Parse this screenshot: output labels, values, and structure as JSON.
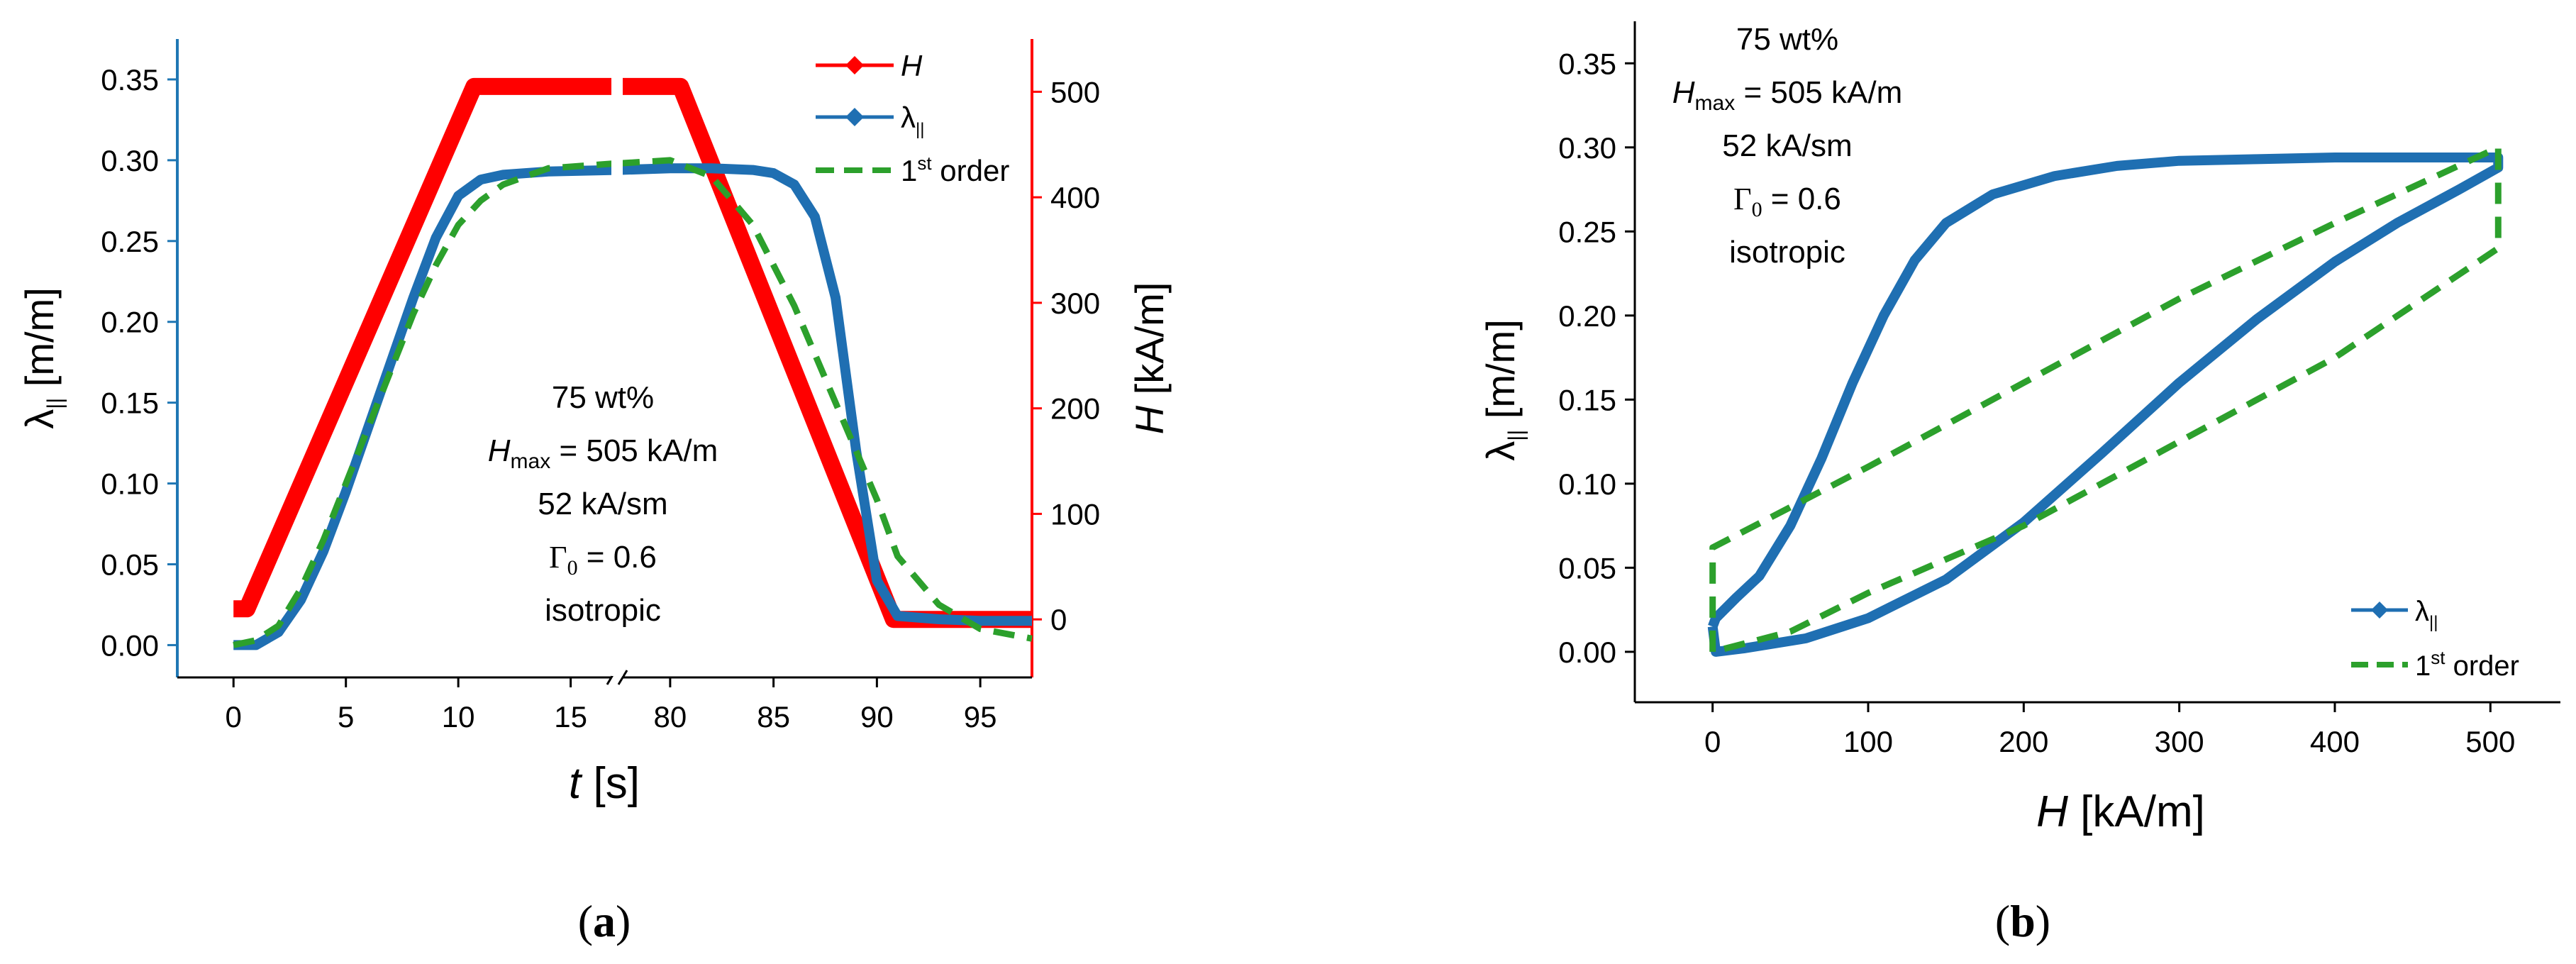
{
  "chart_data": [
    {
      "panel": "a",
      "panel_label": "(a)",
      "type": "line",
      "xlabel": "t [s]",
      "xlabel_var": "t",
      "xlabel_unit": "[s]",
      "ylabel_left": "λ|| [m/m]",
      "ylabel_right": "H [kA/m]",
      "x_axis_break": true,
      "x_segments": [
        {
          "range": [
            -2.5,
            17
          ],
          "ticks": [
            0,
            5,
            10,
            15
          ]
        },
        {
          "range": [
            77.5,
            97.5
          ],
          "ticks": [
            80,
            85,
            90,
            95
          ]
        }
      ],
      "ylim_left": [
        -0.02,
        0.375
      ],
      "yticks_left": [
        "0.00",
        "0.05",
        "0.10",
        "0.15",
        "0.20",
        "0.25",
        "0.30",
        "0.35"
      ],
      "ylim_right": [
        -55,
        550
      ],
      "yticks_right": [
        "0",
        "100",
        "200",
        "300",
        "400",
        "500"
      ],
      "axis_colors": {
        "left": "#1f77b4",
        "right": "#ff0000",
        "bottom": "#000000"
      },
      "legend_position": "top-right",
      "legend": [
        "H",
        "λ||",
        "1st order"
      ],
      "annotation": [
        "75 wt%",
        "Hmax = 505 kA/m",
        "52 kA/sm",
        "Γ0 = 0.6",
        "isotropic"
      ],
      "series": [
        {
          "name": "H",
          "color": "#ff0000",
          "axis": "right",
          "x": [
            0,
            0.6,
            10.7,
            17,
            77.5,
            80.5,
            90.8,
            97.5
          ],
          "y": [
            10,
            10,
            505,
            505,
            505,
            505,
            0,
            0
          ]
        },
        {
          "name": "λ||",
          "color": "#1f6fb2",
          "axis": "left",
          "x": [
            0,
            1,
            2,
            3,
            4,
            5,
            6,
            7,
            8,
            9,
            10,
            11,
            12,
            14,
            17,
            77.5,
            80,
            82,
            84,
            85,
            86,
            87,
            88,
            89,
            90,
            91,
            93,
            95,
            97.5
          ],
          "y": [
            0.0,
            0.0,
            0.008,
            0.028,
            0.058,
            0.095,
            0.135,
            0.175,
            0.215,
            0.252,
            0.278,
            0.288,
            0.291,
            0.293,
            0.294,
            0.294,
            0.295,
            0.295,
            0.294,
            0.292,
            0.285,
            0.265,
            0.215,
            0.12,
            0.04,
            0.018,
            0.016,
            0.015,
            0.015
          ]
        },
        {
          "name": "1st order",
          "color": "#2ca02c",
          "axis": "left",
          "dashed": true,
          "x": [
            0,
            1,
            2,
            3,
            4,
            5,
            6,
            7,
            8,
            9,
            10,
            11,
            12,
            13,
            14,
            17,
            77.5,
            80,
            82,
            84,
            86,
            88,
            90,
            91,
            93,
            95,
            97.5
          ],
          "y": [
            0.0,
            0.003,
            0.012,
            0.035,
            0.065,
            0.1,
            0.135,
            0.17,
            0.205,
            0.235,
            0.26,
            0.275,
            0.285,
            0.29,
            0.295,
            0.298,
            0.298,
            0.3,
            0.29,
            0.26,
            0.21,
            0.15,
            0.09,
            0.055,
            0.025,
            0.01,
            0.004
          ]
        }
      ]
    },
    {
      "panel": "b",
      "panel_label": "(b)",
      "type": "line",
      "xlabel": "H [kA/m]",
      "xlabel_var": "H",
      "xlabel_unit": "[kA/m]",
      "ylabel": "λ|| [m/m]",
      "xlim": [
        -50,
        545
      ],
      "xticks": [
        "0",
        "100",
        "200",
        "300",
        "400",
        "500"
      ],
      "ylim": [
        -0.03,
        0.375
      ],
      "yticks": [
        "0.00",
        "0.05",
        "0.10",
        "0.15",
        "0.20",
        "0.25",
        "0.30",
        "0.35"
      ],
      "legend_position": "bottom-right",
      "legend": [
        "λ||",
        "1st order"
      ],
      "annotation": [
        "75 wt%",
        "Hmax = 505 kA/m",
        "52 kA/sm",
        "Γ0 = 0.6",
        "isotropic"
      ],
      "series": [
        {
          "name": "λ||",
          "color": "#1f6fb2",
          "x": [
            0,
            2,
            15,
            30,
            50,
            70,
            90,
            110,
            130,
            150,
            180,
            220,
            260,
            300,
            350,
            400,
            450,
            505,
            505,
            480,
            440,
            400,
            350,
            300,
            250,
            200,
            150,
            100,
            60,
            20,
            2,
            0
          ],
          "y": [
            0.015,
            0.02,
            0.032,
            0.045,
            0.075,
            0.115,
            0.16,
            0.2,
            0.233,
            0.255,
            0.272,
            0.283,
            0.289,
            0.292,
            0.293,
            0.294,
            0.294,
            0.294,
            0.288,
            0.275,
            0.255,
            0.232,
            0.198,
            0.16,
            0.118,
            0.077,
            0.043,
            0.02,
            0.008,
            0.002,
            0.0,
            0.015
          ]
        },
        {
          "name": "1st order",
          "color": "#2ca02c",
          "dashed": true,
          "x": [
            0,
            0,
            100,
            200,
            300,
            400,
            505,
            505,
            505,
            400,
            300,
            200,
            100,
            50,
            0
          ],
          "y": [
            0.0,
            0.062,
            0.11,
            0.16,
            0.21,
            0.255,
            0.3,
            0.3,
            0.24,
            0.175,
            0.125,
            0.075,
            0.035,
            0.012,
            0.0
          ]
        }
      ]
    }
  ]
}
